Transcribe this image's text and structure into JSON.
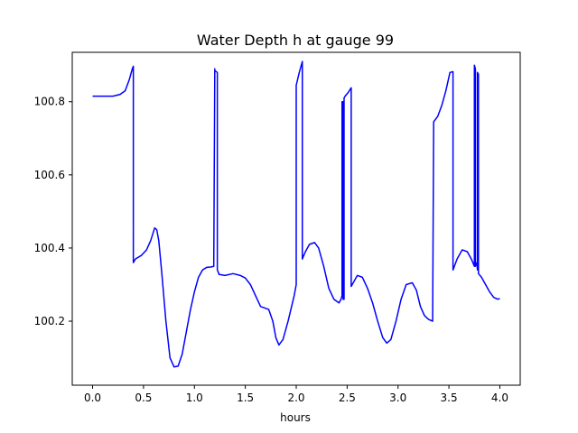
{
  "chart_data": {
    "type": "line",
    "title": "Water Depth h at gauge 99",
    "xlabel": "hours",
    "ylabel": "",
    "xlim": [
      -0.2,
      4.2
    ],
    "ylim": [
      100.025,
      100.935
    ],
    "xticks": [
      0.0,
      0.5,
      1.0,
      1.5,
      2.0,
      2.5,
      3.0,
      3.5,
      4.0
    ],
    "xtick_labels": [
      "0.0",
      "0.5",
      "1.0",
      "1.5",
      "2.0",
      "2.5",
      "3.0",
      "3.5",
      "4.0"
    ],
    "yticks": [
      100.2,
      100.4,
      100.6,
      100.8
    ],
    "ytick_labels": [
      "100.2",
      "100.4",
      "100.6",
      "100.8"
    ],
    "grid": false,
    "legend": "none",
    "series": [
      {
        "color": "#0000ff",
        "x": [
          0.0,
          0.1,
          0.2,
          0.27,
          0.32,
          0.36,
          0.39,
          0.4,
          0.4,
          0.42,
          0.48,
          0.53,
          0.57,
          0.61,
          0.63,
          0.65,
          0.68,
          0.72,
          0.76,
          0.8,
          0.84,
          0.88,
          0.92,
          0.96,
          1.0,
          1.04,
          1.08,
          1.12,
          1.16,
          1.19,
          1.2,
          1.2,
          1.225,
          1.225,
          1.24,
          1.24,
          1.3,
          1.38,
          1.45,
          1.5,
          1.55,
          1.6,
          1.65,
          1.7,
          1.73,
          1.77,
          1.8,
          1.83,
          1.87,
          1.92,
          1.98,
          2.0,
          2.0,
          2.03,
          2.06,
          2.06,
          2.09,
          2.13,
          2.18,
          2.22,
          2.27,
          2.32,
          2.37,
          2.42,
          2.44,
          2.45,
          2.45,
          2.46,
          2.46,
          2.47,
          2.47,
          2.48,
          2.48,
          2.51,
          2.54,
          2.54,
          2.57,
          2.6,
          2.65,
          2.7,
          2.75,
          2.8,
          2.85,
          2.89,
          2.93,
          2.98,
          3.03,
          3.08,
          3.14,
          3.18,
          3.22,
          3.26,
          3.3,
          3.34,
          3.35,
          3.35,
          3.39,
          3.43,
          3.47,
          3.51,
          3.54,
          3.54,
          3.58,
          3.63,
          3.68,
          3.72,
          3.75,
          3.75,
          3.76,
          3.76,
          3.775,
          3.78,
          3.78,
          3.79,
          3.79,
          3.82,
          3.86,
          3.9,
          3.94,
          3.98,
          4.0
        ],
        "values": [
          100.815,
          100.815,
          100.815,
          100.82,
          100.83,
          100.86,
          100.89,
          100.897,
          100.36,
          100.37,
          100.38,
          100.395,
          100.42,
          100.455,
          100.45,
          100.42,
          100.33,
          100.2,
          100.1,
          100.075,
          100.077,
          100.11,
          100.17,
          100.23,
          100.28,
          100.32,
          100.34,
          100.347,
          100.348,
          100.35,
          100.89,
          100.885,
          100.88,
          100.34,
          100.33,
          100.328,
          100.325,
          100.33,
          100.325,
          100.318,
          100.3,
          100.27,
          100.24,
          100.235,
          100.232,
          100.2,
          100.155,
          100.135,
          100.15,
          100.2,
          100.27,
          100.3,
          100.845,
          100.88,
          100.91,
          100.37,
          100.39,
          100.41,
          100.415,
          100.4,
          100.35,
          100.29,
          100.26,
          100.25,
          100.26,
          100.27,
          100.8,
          100.8,
          100.26,
          100.26,
          100.81,
          100.815,
          100.815,
          100.825,
          100.838,
          100.295,
          100.31,
          100.325,
          100.32,
          100.29,
          100.25,
          100.2,
          100.155,
          100.14,
          100.15,
          100.2,
          100.26,
          100.3,
          100.305,
          100.285,
          100.24,
          100.215,
          100.205,
          100.2,
          100.745,
          100.745,
          100.76,
          100.79,
          100.83,
          100.88,
          100.882,
          100.34,
          100.37,
          100.395,
          100.39,
          100.37,
          100.35,
          100.9,
          100.89,
          100.35,
          100.36,
          100.34,
          100.88,
          100.875,
          100.33,
          100.32,
          100.3,
          100.28,
          100.265,
          100.26,
          100.262
        ]
      }
    ]
  }
}
